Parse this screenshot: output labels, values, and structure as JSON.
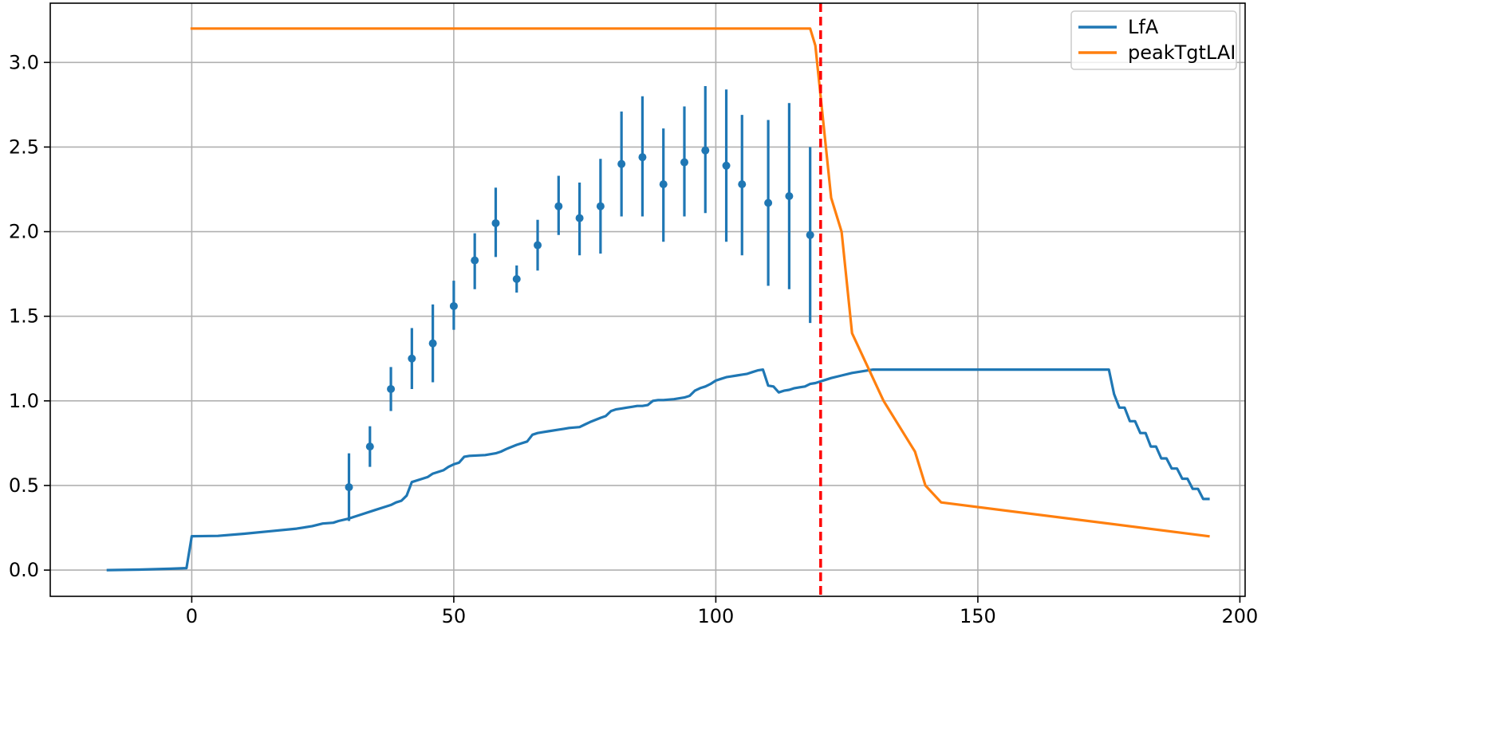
{
  "chart_data": {
    "type": "line",
    "title": "",
    "xlabel": "",
    "ylabel": "",
    "xlim": [
      -27,
      201
    ],
    "ylim": [
      -0.155,
      3.35
    ],
    "grid": true,
    "legend_placement": "upper-right",
    "xticks": [
      0,
      50,
      100,
      150,
      200
    ],
    "xtick_labels": [
      "0",
      "50",
      "100",
      "150",
      "200"
    ],
    "yticks": [
      0.0,
      0.5,
      1.0,
      1.5,
      2.0,
      2.5,
      3.0
    ],
    "ytick_labels": [
      "0.0",
      "0.5",
      "1.0",
      "1.5",
      "2.0",
      "2.5",
      "3.0"
    ],
    "series": [
      {
        "name": "LfA",
        "color": "#1f77b4",
        "x": [
          -16,
          -10,
          -4,
          -1,
          0,
          5,
          10,
          15,
          20,
          23,
          25,
          27,
          28,
          30,
          32,
          35,
          37,
          38,
          39,
          40,
          41,
          42,
          44,
          45,
          46,
          48,
          49,
          50,
          51,
          52,
          53,
          56,
          57,
          58,
          59,
          60,
          62,
          64,
          65,
          66,
          67,
          68,
          70,
          71,
          72,
          74,
          75,
          76,
          78,
          79,
          80,
          81,
          82,
          83,
          84,
          85,
          86,
          87,
          88,
          89,
          90,
          92,
          94,
          95,
          96,
          97,
          98,
          99,
          100,
          101,
          102,
          103,
          104,
          105,
          106,
          107,
          108,
          109,
          110,
          111,
          112,
          113,
          114,
          115,
          116,
          117,
          118,
          119,
          120,
          121,
          122,
          124,
          126,
          128,
          130,
          150,
          175,
          176,
          177,
          178,
          179,
          180,
          181,
          182,
          183,
          184,
          185,
          186,
          187,
          188,
          189,
          190,
          191,
          192,
          193,
          194
        ],
        "y": [
          0.0,
          0.003,
          0.008,
          0.012,
          0.2,
          0.202,
          0.215,
          0.23,
          0.245,
          0.26,
          0.275,
          0.28,
          0.29,
          0.305,
          0.325,
          0.355,
          0.375,
          0.385,
          0.4,
          0.41,
          0.44,
          0.52,
          0.54,
          0.55,
          0.57,
          0.59,
          0.61,
          0.625,
          0.635,
          0.67,
          0.675,
          0.68,
          0.685,
          0.69,
          0.7,
          0.715,
          0.74,
          0.76,
          0.8,
          0.81,
          0.815,
          0.82,
          0.83,
          0.835,
          0.84,
          0.845,
          0.86,
          0.875,
          0.9,
          0.91,
          0.94,
          0.95,
          0.955,
          0.96,
          0.965,
          0.97,
          0.97,
          0.975,
          1.0,
          1.005,
          1.005,
          1.01,
          1.02,
          1.03,
          1.06,
          1.075,
          1.085,
          1.1,
          1.12,
          1.13,
          1.14,
          1.145,
          1.15,
          1.155,
          1.16,
          1.17,
          1.18,
          1.185,
          1.09,
          1.085,
          1.05,
          1.06,
          1.065,
          1.075,
          1.08,
          1.085,
          1.1,
          1.105,
          1.115,
          1.125,
          1.135,
          1.15,
          1.165,
          1.175,
          1.185,
          1.185,
          1.185,
          1.04,
          0.96,
          0.96,
          0.88,
          0.88,
          0.81,
          0.81,
          0.73,
          0.73,
          0.66,
          0.66,
          0.6,
          0.6,
          0.54,
          0.54,
          0.48,
          0.48,
          0.42,
          0.42
        ]
      },
      {
        "name": "peakTgtLAI",
        "color": "#ff7f0e",
        "x": [
          0,
          118,
          119,
          120,
          121,
          122,
          124,
          126,
          132,
          138,
          140,
          143,
          194
        ],
        "y": [
          3.2,
          3.2,
          3.1,
          2.8,
          2.5,
          2.2,
          2.0,
          1.4,
          1.0,
          0.7,
          0.5,
          0.4,
          0.2
        ]
      }
    ],
    "observations": {
      "color": "#1f77b4",
      "x": [
        30,
        34,
        38,
        42,
        46,
        50,
        54,
        58,
        62,
        66,
        70,
        74,
        78,
        82,
        86,
        90,
        94,
        98,
        102,
        105,
        110,
        114,
        118
      ],
      "y": [
        0.49,
        0.73,
        1.07,
        1.25,
        1.34,
        1.56,
        1.83,
        2.05,
        1.72,
        1.92,
        2.15,
        2.08,
        2.15,
        2.4,
        2.44,
        2.28,
        2.41,
        2.48,
        2.39,
        2.28,
        2.17,
        2.21,
        1.98
      ],
      "yerr_low": [
        0.29,
        0.61,
        0.94,
        1.07,
        1.11,
        1.42,
        1.66,
        1.85,
        1.64,
        1.77,
        1.98,
        1.86,
        1.87,
        2.09,
        2.09,
        1.94,
        2.09,
        2.11,
        1.94,
        1.86,
        1.68,
        1.66,
        1.46
      ],
      "yerr_high": [
        0.69,
        0.85,
        1.2,
        1.43,
        1.57,
        1.71,
        1.99,
        2.26,
        1.8,
        2.07,
        2.33,
        2.29,
        2.43,
        2.71,
        2.8,
        2.61,
        2.74,
        2.86,
        2.84,
        2.69,
        2.66,
        2.76,
        2.5
      ]
    },
    "vline": {
      "x": 120,
      "color": "#ff0000",
      "style": "dashed"
    }
  }
}
